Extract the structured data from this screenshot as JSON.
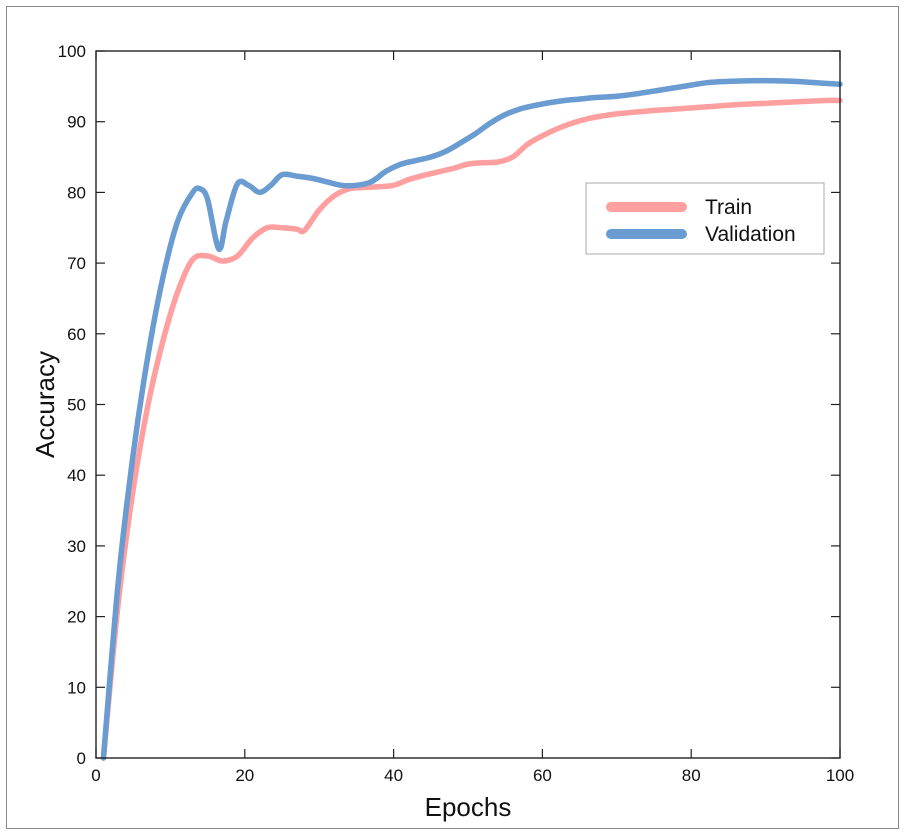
{
  "chart_data": {
    "type": "line",
    "title": "",
    "xlabel": "Epochs",
    "ylabel": "Accuracy",
    "xlim": [
      0,
      100
    ],
    "ylim": [
      0,
      100
    ],
    "xticks": [
      "0",
      "20",
      "40",
      "60",
      "80",
      "100"
    ],
    "yticks": [
      "0",
      "10",
      "20",
      "30",
      "40",
      "50",
      "60",
      "70",
      "80",
      "90",
      "100"
    ],
    "grid": false,
    "legend_position": "upper-right",
    "series": [
      {
        "name": "Train",
        "color": "#ff9f9f",
        "x": [
          1,
          3,
          5,
          7,
          9,
          11,
          13,
          15,
          17,
          19,
          21,
          23,
          25,
          27,
          28,
          30,
          32,
          34,
          36,
          38,
          40,
          42,
          44,
          46,
          48,
          50,
          52,
          54,
          56,
          58,
          60,
          62,
          64,
          66,
          68,
          70,
          74,
          78,
          82,
          86,
          90,
          94,
          98,
          100
        ],
        "y": [
          0,
          22,
          38,
          50,
          59,
          66,
          70.5,
          71,
          70.3,
          71,
          73.5,
          75,
          75,
          74.8,
          74.6,
          77.5,
          79.5,
          80.5,
          80.7,
          80.8,
          81,
          81.8,
          82.4,
          82.9,
          83.4,
          84,
          84.2,
          84.3,
          85,
          86.8,
          88,
          89,
          89.8,
          90.4,
          90.8,
          91.1,
          91.5,
          91.8,
          92.1,
          92.4,
          92.6,
          92.8,
          93,
          93
        ]
      },
      {
        "name": "Validation",
        "color": "#6a9bd1",
        "x": [
          1,
          3,
          5,
          7,
          9,
          11,
          13,
          14,
          15,
          16.5,
          17.5,
          19,
          20.5,
          22,
          23.5,
          25,
          27,
          29,
          31,
          33,
          35,
          37,
          39,
          41,
          43,
          45,
          47,
          49,
          51,
          53,
          55,
          57,
          59,
          61,
          63,
          65,
          67,
          70,
          73,
          76,
          79,
          82,
          85,
          88,
          91,
          94,
          97,
          100
        ],
        "y": [
          0,
          25,
          43,
          57,
          68,
          76,
          80,
          80.5,
          79,
          72,
          76,
          81.2,
          81,
          80,
          81,
          82.5,
          82.3,
          82,
          81.5,
          81,
          81,
          81.5,
          83,
          84,
          84.5,
          85,
          85.8,
          87,
          88.3,
          89.8,
          91,
          91.8,
          92.3,
          92.7,
          93,
          93.2,
          93.4,
          93.6,
          94,
          94.5,
          95,
          95.5,
          95.7,
          95.8,
          95.8,
          95.7,
          95.5,
          95.3
        ]
      }
    ]
  }
}
